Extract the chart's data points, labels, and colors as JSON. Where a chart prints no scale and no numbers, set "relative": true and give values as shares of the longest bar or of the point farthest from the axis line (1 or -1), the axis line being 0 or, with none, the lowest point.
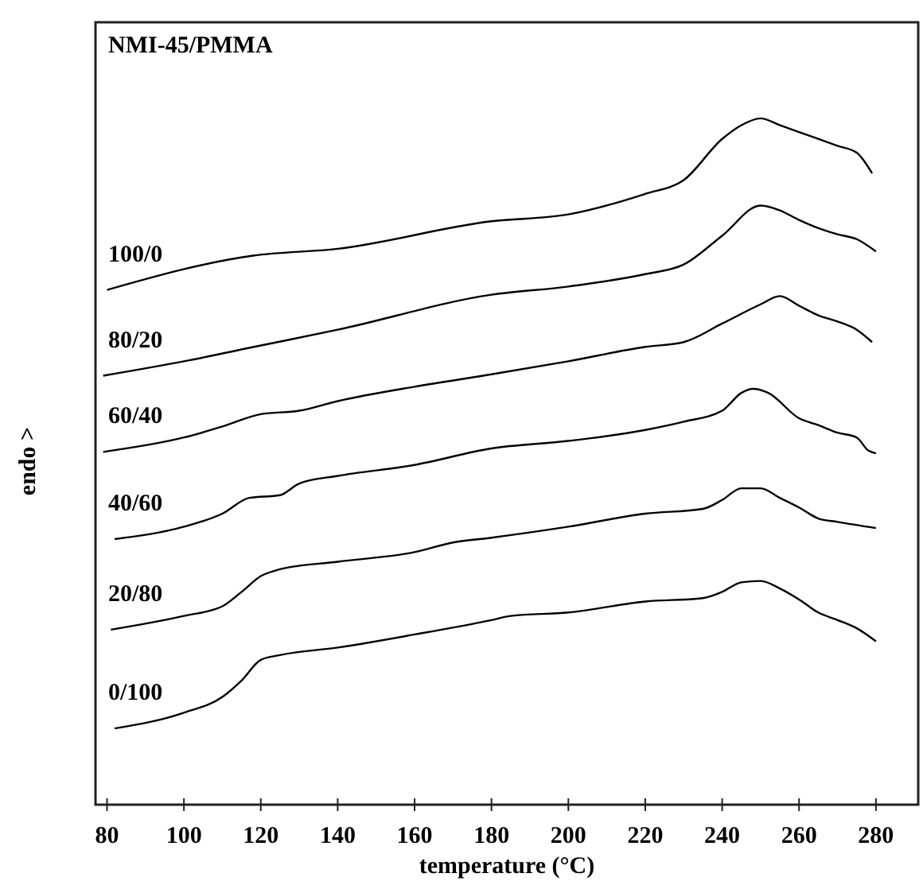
{
  "chart_data": {
    "type": "line",
    "title": "NMI-45/PMMA",
    "xlabel": "temperature (°C)",
    "ylabel": "endo >",
    "relative": true,
    "legend": false,
    "grid": false,
    "marker": "none",
    "line_style": "solid",
    "xlim": [
      77,
      291
    ],
    "xticks": [
      80,
      100,
      120,
      140,
      160,
      180,
      200,
      220,
      240,
      260,
      280
    ],
    "series": [
      {
        "name": "100/0",
        "color": "#000000",
        "x": [
          80,
          118,
          140,
          180,
          200,
          220,
          230,
          240,
          245,
          250,
          255,
          260,
          265,
          270,
          275,
          279
        ],
        "values": [
          0.75,
          0.8,
          0.81,
          0.85,
          0.86,
          0.89,
          0.91,
          0.97,
          0.99,
          1,
          0.99,
          0.98,
          0.97,
          0.96,
          0.95,
          0.92
        ]
      },
      {
        "name": "80/20",
        "color": "#000000",
        "x": [
          79,
          100,
          120,
          140,
          180,
          200,
          220,
          230,
          240,
          250,
          255,
          260,
          265,
          270,
          275,
          280
        ],
        "values": [
          0.625,
          0.646,
          0.669,
          0.692,
          0.743,
          0.755,
          0.773,
          0.787,
          0.829,
          0.873,
          0.866,
          0.852,
          0.84,
          0.831,
          0.824,
          0.806
        ]
      },
      {
        "name": "60/40",
        "color": "#000000",
        "x": [
          79,
          100,
          110,
          120,
          130,
          140,
          160,
          180,
          200,
          220,
          230,
          240,
          250,
          255,
          260,
          265,
          270,
          275,
          279
        ],
        "values": [
          0.514,
          0.535,
          0.551,
          0.569,
          0.574,
          0.588,
          0.609,
          0.627,
          0.646,
          0.667,
          0.674,
          0.701,
          0.729,
          0.741,
          0.727,
          0.713,
          0.704,
          0.692,
          0.674
        ]
      },
      {
        "name": "40/60",
        "color": "#000000",
        "x": [
          82,
          100,
          110,
          117,
          125,
          130,
          140,
          160,
          180,
          200,
          220,
          230,
          240,
          245,
          248,
          252,
          260,
          265,
          270,
          275,
          278,
          280
        ],
        "values": [
          0.387,
          0.405,
          0.424,
          0.447,
          0.451,
          0.468,
          0.479,
          0.495,
          0.519,
          0.53,
          0.546,
          0.558,
          0.574,
          0.6,
          0.606,
          0.6,
          0.563,
          0.553,
          0.542,
          0.535,
          0.516,
          0.512
        ]
      },
      {
        "name": "20/80",
        "color": "#000000",
        "x": [
          81,
          100,
          110,
          115,
          120,
          125,
          140,
          160,
          170,
          180,
          200,
          220,
          235,
          240,
          245,
          250,
          255,
          260,
          265,
          270,
          280
        ],
        "values": [
          0.255,
          0.275,
          0.289,
          0.31,
          0.333,
          0.343,
          0.354,
          0.368,
          0.382,
          0.389,
          0.405,
          0.424,
          0.431,
          0.444,
          0.461,
          0.461,
          0.447,
          0.433,
          0.417,
          0.412,
          0.403
        ]
      },
      {
        "name": "0/100",
        "color": "#000000",
        "x": [
          82,
          100,
          110,
          115,
          120,
          125,
          140,
          160,
          180,
          185,
          200,
          220,
          235,
          240,
          245,
          250,
          255,
          260,
          265,
          270,
          275,
          280
        ],
        "values": [
          0.111,
          0.134,
          0.157,
          0.181,
          0.211,
          0.218,
          0.229,
          0.248,
          0.269,
          0.275,
          0.28,
          0.296,
          0.301,
          0.31,
          0.324,
          0.326,
          0.315,
          0.299,
          0.28,
          0.269,
          0.257,
          0.238
        ]
      }
    ]
  }
}
